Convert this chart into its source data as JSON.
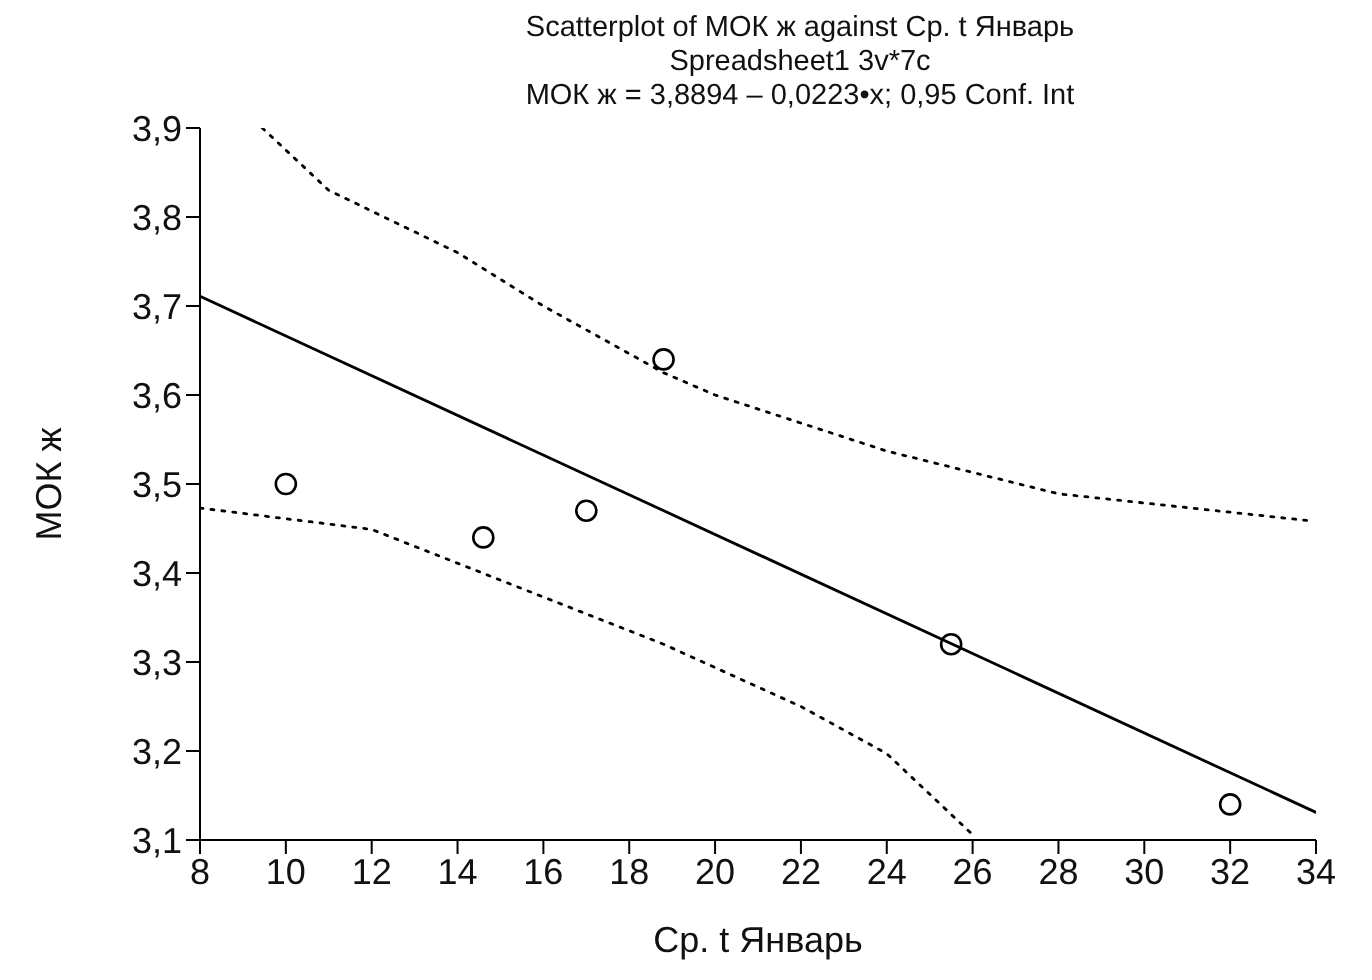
{
  "chart_data": {
    "type": "scatter",
    "title": "Scatterplot of МОК ж against Ср. t Январь",
    "subtitle": "Spreadsheet1 3v*7c\nМОК ж = 3,8894 – 0,0223•x; 0,95 Conf. Int",
    "xlabel": "Ср. t Январь",
    "ylabel": "МОК ж",
    "x": [
      10,
      14.6,
      17.0,
      18.8,
      25.5,
      32.0
    ],
    "series": [
      {
        "color": "#000000",
        "values": [
          3.5,
          3.44,
          3.47,
          3.64,
          3.32,
          3.14
        ],
        "marker": "circle"
      },
      {
        "type": "line",
        "color": "#000000",
        "line_style": "solid",
        "x": [
          8,
          34
        ],
        "values": [
          3.711,
          3.131
        ]
      },
      {
        "type": "line",
        "color": "#000000",
        "line_style": "dotted",
        "x": [
          9.45,
          11,
          14,
          16,
          18.8,
          20,
          24,
          28,
          33.8
        ],
        "values": [
          3.9,
          3.83,
          3.76,
          3.7,
          3.625,
          3.6,
          3.537,
          3.489,
          3.459
        ]
      },
      {
        "type": "line",
        "color": "#000000",
        "line_style": "dotted",
        "x": [
          8,
          12,
          16,
          18.8,
          22,
          24,
          26
        ],
        "values": [
          3.473,
          3.449,
          3.373,
          3.32,
          3.25,
          3.197,
          3.106
        ]
      }
    ],
    "xlim": [
      8,
      34
    ],
    "xticks": [
      8,
      10,
      12,
      14,
      16,
      18,
      20,
      22,
      24,
      26,
      28,
      30,
      32,
      34
    ],
    "ylim": [
      3.1,
      3.9
    ],
    "yticks": [
      {
        "value": 3.1,
        "label": "3,1"
      },
      {
        "value": 3.2,
        "label": "3,2"
      },
      {
        "value": 3.3,
        "label": "3,3"
      },
      {
        "value": 3.4,
        "label": "3,4"
      },
      {
        "value": 3.5,
        "label": "3,5"
      },
      {
        "value": 3.6,
        "label": "3,6"
      },
      {
        "value": 3.7,
        "label": "3,7"
      },
      {
        "value": 3.8,
        "label": "3,8"
      },
      {
        "value": 3.9,
        "label": "3,9"
      }
    ],
    "grid": false
  }
}
